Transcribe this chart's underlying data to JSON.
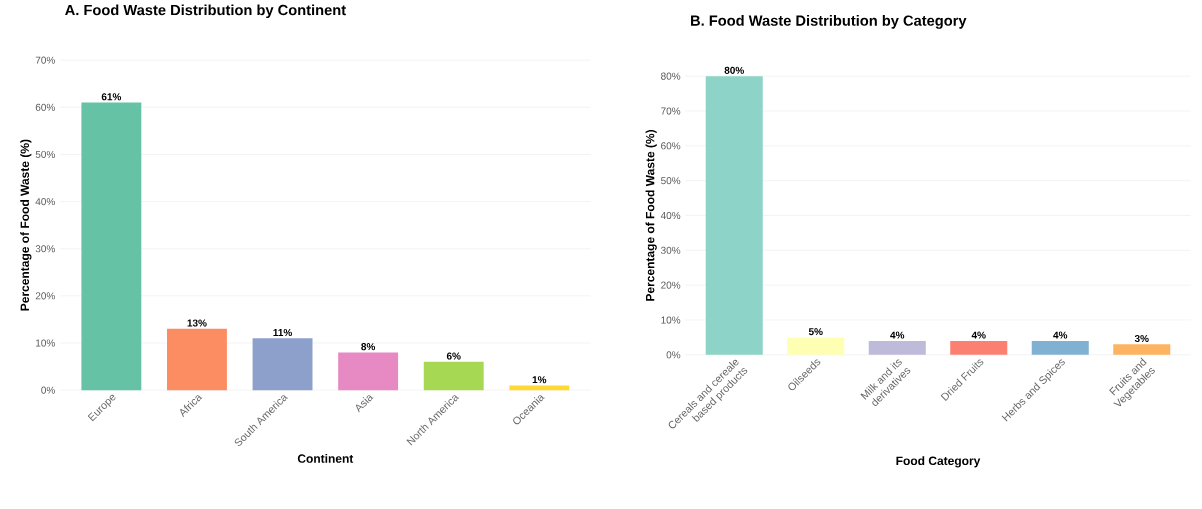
{
  "chart_data": [
    {
      "type": "bar",
      "title": "A. Food Waste Distribution by Continent",
      "xlabel": "Continent",
      "ylabel": "Percentage of Food Waste (%)",
      "categories": [
        "Europe",
        "Africa",
        "South America",
        "Asia",
        "North America",
        "Oceania"
      ],
      "values": [
        61,
        13,
        11,
        8,
        6,
        1
      ],
      "value_labels": [
        "61%",
        "13%",
        "11%",
        "8%",
        "6%",
        "1%"
      ],
      "colors": [
        "#66c2a5",
        "#fc8d62",
        "#8da0cb",
        "#e78ac3",
        "#a6d854",
        "#ffd92f"
      ],
      "ylim": [
        0,
        70
      ],
      "yticks": [
        {
          "value": 0,
          "label": "0%"
        },
        {
          "value": 10,
          "label": "10%"
        },
        {
          "value": 20,
          "label": "20%"
        },
        {
          "value": 30,
          "label": "30%"
        },
        {
          "value": 40,
          "label": "40%"
        },
        {
          "value": 50,
          "label": "50%"
        },
        {
          "value": 60,
          "label": "60%"
        },
        {
          "value": 70,
          "label": "70%"
        }
      ],
      "grid": "y"
    },
    {
      "type": "bar",
      "title": "B. Food Waste Distribution by Category",
      "xlabel": "Food Category",
      "ylabel": "Percentage of Food Waste (%)",
      "categories": [
        "Cereals and cereale based products",
        "Oilseeds",
        "Milk and its derivatives",
        "Dried Fruits",
        "Herbs and Spices",
        "Fruits and Vegetables"
      ],
      "values": [
        80,
        5,
        4,
        4,
        4,
        3
      ],
      "value_labels": [
        "80%",
        "5%",
        "4%",
        "4%",
        "4%",
        "3%"
      ],
      "colors": [
        "#8dd3c7",
        "#ffffb3",
        "#bebada",
        "#fb8072",
        "#80b1d3",
        "#fdb462"
      ],
      "ylim": [
        0,
        80
      ],
      "yticks": [
        {
          "value": 0,
          "label": "0%"
        },
        {
          "value": 10,
          "label": "10%"
        },
        {
          "value": 20,
          "label": "20%"
        },
        {
          "value": 30,
          "label": "30%"
        },
        {
          "value": 40,
          "label": "40%"
        },
        {
          "value": 50,
          "label": "50%"
        },
        {
          "value": 60,
          "label": "60%"
        },
        {
          "value": 70,
          "label": "70%"
        },
        {
          "value": 80,
          "label": "80%"
        }
      ],
      "grid": "y"
    }
  ]
}
